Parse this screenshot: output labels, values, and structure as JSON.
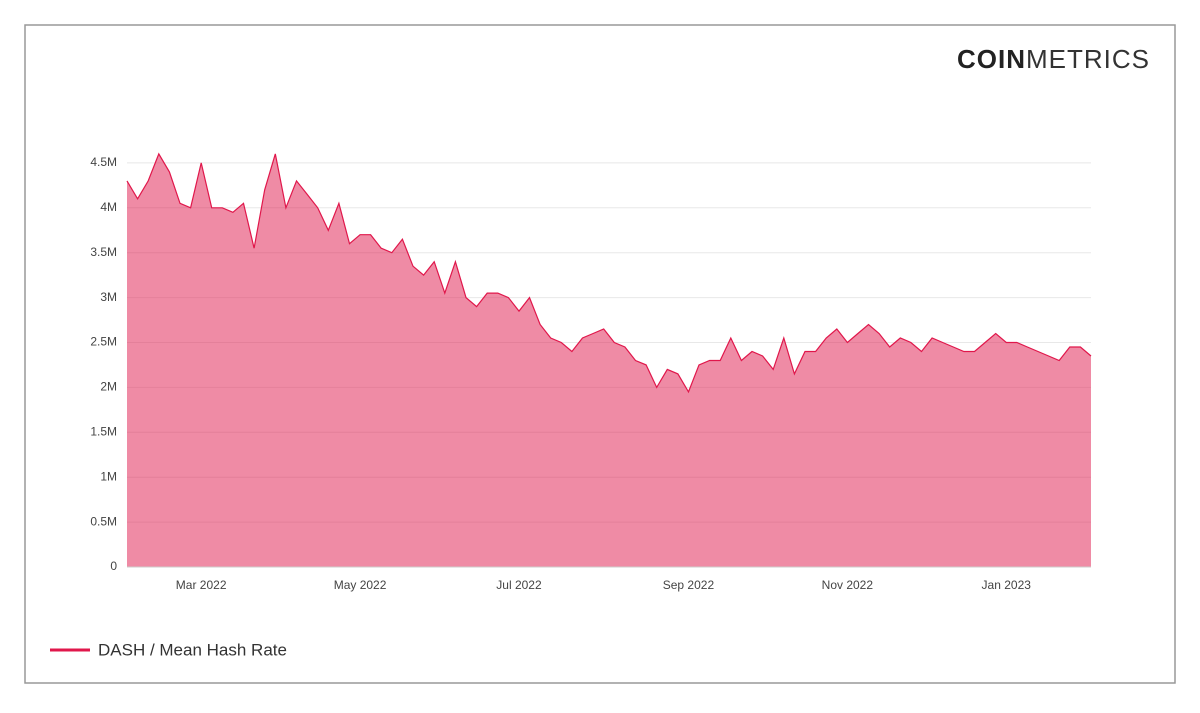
{
  "logo": {
    "bold": "COIN",
    "light": "METRICS"
  },
  "chart_data": {
    "type": "area",
    "categories": [
      null,
      null,
      null,
      null,
      null,
      null,
      null,
      "Mar 2022",
      null,
      null,
      null,
      null,
      null,
      null,
      null,
      null,
      null,
      null,
      null,
      null,
      null,
      null,
      "May 2022",
      null,
      null,
      null,
      null,
      null,
      null,
      null,
      null,
      null,
      null,
      null,
      null,
      null,
      null,
      "Jul 2022",
      null,
      null,
      null,
      null,
      null,
      null,
      null,
      null,
      null,
      null,
      null,
      null,
      null,
      null,
      null,
      "Sep 2022",
      null,
      null,
      null,
      null,
      null,
      null,
      null,
      null,
      null,
      null,
      null,
      null,
      null,
      null,
      "Nov 2022",
      null,
      null,
      null,
      null,
      null,
      null,
      null,
      null,
      null,
      null,
      null,
      null,
      null,
      null,
      "Jan 2023",
      null,
      null,
      null,
      null,
      null,
      null,
      null,
      null
    ],
    "series": [
      {
        "name": "DASH / Mean Hash Rate",
        "color": "#e0174b",
        "values": [
          4300000,
          4100000,
          4300000,
          4600000,
          4400000,
          4050000,
          4000000,
          4500000,
          4000000,
          4000000,
          3950000,
          4050000,
          3550000,
          4200000,
          4600000,
          4000000,
          4300000,
          4150000,
          4000000,
          3750000,
          4050000,
          3600000,
          3700000,
          3700000,
          3550000,
          3500000,
          3650000,
          3350000,
          3250000,
          3400000,
          3050000,
          3400000,
          3000000,
          2900000,
          3050000,
          3050000,
          3000000,
          2850000,
          3000000,
          2700000,
          2550000,
          2500000,
          2400000,
          2550000,
          2600000,
          2650000,
          2500000,
          2450000,
          2300000,
          2250000,
          2000000,
          2200000,
          2150000,
          1950000,
          2250000,
          2300000,
          2300000,
          2550000,
          2300000,
          2400000,
          2350000,
          2200000,
          2550000,
          2150000,
          2400000,
          2400000,
          2550000,
          2650000,
          2500000,
          2600000,
          2700000,
          2600000,
          2450000,
          2550000,
          2500000,
          2400000,
          2550000,
          2500000,
          2450000,
          2400000,
          2400000,
          2500000,
          2600000,
          2500000,
          2500000,
          2450000,
          2400000,
          2350000,
          2300000,
          2450000,
          2450000,
          2350000
        ]
      }
    ],
    "ylim": [
      0,
      5000000
    ],
    "yticks": [
      0,
      {
        "value": 500000,
        "label": "0.5M"
      },
      {
        "value": 1000000,
        "label": "1M"
      },
      {
        "value": 1500000,
        "label": "1.5M"
      },
      {
        "value": 2000000,
        "label": "2M"
      },
      {
        "value": 2500000,
        "label": "2.5M"
      },
      {
        "value": 3000000,
        "label": "3M"
      },
      {
        "value": 3500000,
        "label": "3.5M"
      },
      {
        "value": 4000000,
        "label": "4M"
      },
      {
        "value": 4500000,
        "label": "4.5M"
      }
    ],
    "grid": true,
    "legend": "bottom-left"
  }
}
